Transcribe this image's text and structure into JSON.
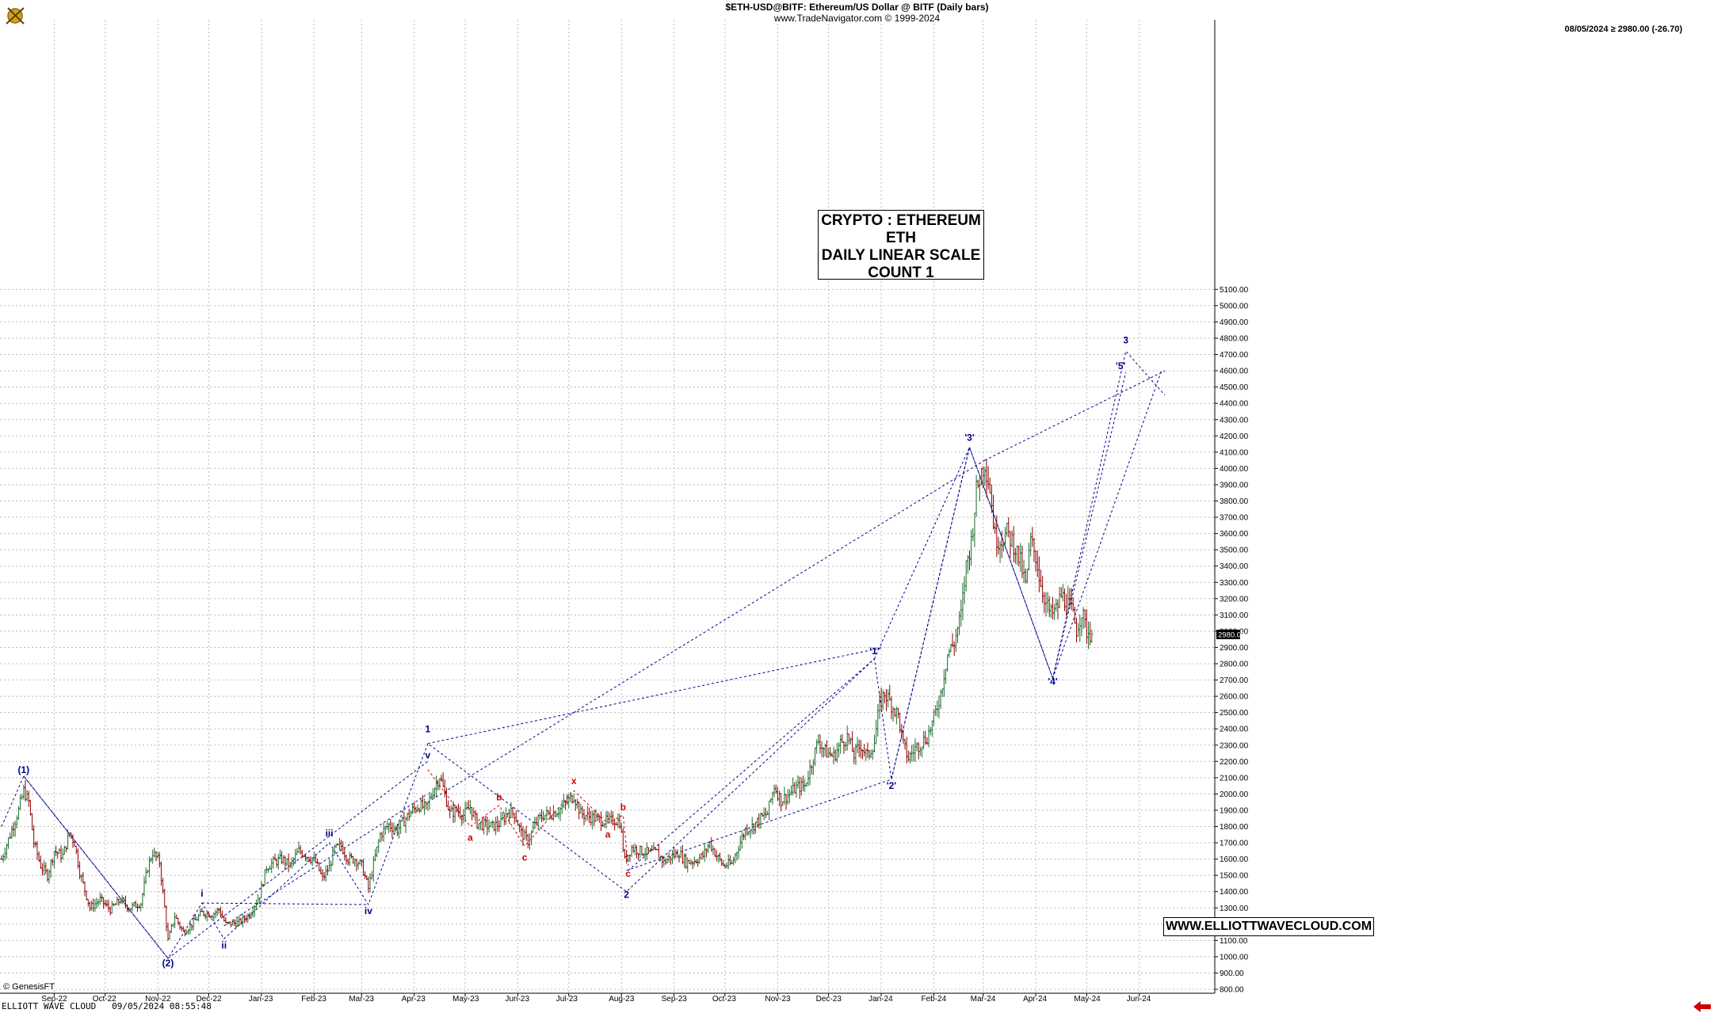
{
  "header": {
    "title": "$ETH-USD@BITF:  Ethereum/US Dollar @ BITF  (Daily bars)",
    "subtitle": "www.TradeNavigator.com © 1999-2024",
    "last_price_text": "08/05/2024 ≥ 2980.00 (-26.70)"
  },
  "info_box": {
    "line1": "CRYPTO : ETHEREUM",
    "line2": "ETH",
    "line3": "DAILY LINEAR SCALE",
    "line4": "COUNT 1"
  },
  "website": "WWW.ELLIOTTWAVECLOUD.COM",
  "footer": {
    "left": "ELLIOTT WAVE CLOUD   09/05/2024 08:55:48",
    "genesis": "© GenesisFT"
  },
  "colors": {
    "up_bar": "#1a6b2a",
    "down_bar": "#8b0000",
    "wave_blue": "#00008b",
    "wave_red": "#cc0000",
    "grid": "#bbbbbb",
    "price_tag_bg": "#000000",
    "nav_arrow": "#cc0000"
  },
  "icons": {
    "logo": "crossed-swords-emblem-icon",
    "nav": "left-arrow-icon"
  },
  "chart_data": {
    "type": "ohlc",
    "title": "$ETH-USD@BITF:  Ethereum/US Dollar @ BITF  (Daily bars)",
    "ylim": [
      800,
      5100
    ],
    "y_ticks": [
      "800.00",
      "900.00",
      "1000.00",
      "1100.00",
      "1200.00",
      "1300.00",
      "1400.00",
      "1500.00",
      "1600.00",
      "1700.00",
      "1800.00",
      "1900.00",
      "2000.00",
      "2100.00",
      "2200.00",
      "2300.00",
      "2400.00",
      "2500.00",
      "2600.00",
      "2700.00",
      "2800.00",
      "2900.00",
      "3000.00",
      "3100.00",
      "3200.00",
      "3300.00",
      "3400.00",
      "3500.00",
      "3600.00",
      "3700.00",
      "3800.00",
      "3900.00",
      "4000.00",
      "4100.00",
      "4200.00",
      "4300.00",
      "4400.00",
      "4500.00",
      "4600.00",
      "4700.00",
      "4800.00",
      "4900.00",
      "5000.00",
      "5100.00"
    ],
    "x_ticks": [
      {
        "label": "Sep-22",
        "day": 31
      },
      {
        "label": "Oct-22",
        "day": 61
      },
      {
        "label": "Nov-22",
        "day": 92
      },
      {
        "label": "Dec-22",
        "day": 122
      },
      {
        "label": "Jan-23",
        "day": 153
      },
      {
        "label": "Feb-23",
        "day": 184
      },
      {
        "label": "Mar-23",
        "day": 212
      },
      {
        "label": "Apr-23",
        "day": 243
      },
      {
        "label": "May-23",
        "day": 273
      },
      {
        "label": "Jun-23",
        "day": 304
      },
      {
        "label": "Jul-23",
        "day": 334
      },
      {
        "label": "Aug-23",
        "day": 365
      },
      {
        "label": "Sep-23",
        "day": 396
      },
      {
        "label": "Oct-23",
        "day": 426
      },
      {
        "label": "Nov-23",
        "day": 457
      },
      {
        "label": "Dec-23",
        "day": 487
      },
      {
        "label": "Jan-24",
        "day": 518
      },
      {
        "label": "Feb-24",
        "day": 549
      },
      {
        "label": "Mar-24",
        "day": 578
      },
      {
        "label": "Apr-24",
        "day": 609
      },
      {
        "label": "May-24",
        "day": 639
      },
      {
        "label": "Jun-24",
        "day": 670
      }
    ],
    "x_range": [
      0,
      703
    ],
    "last_price_tag": "2980.00",
    "price_path": [
      [
        0,
        1600
      ],
      [
        5,
        1750
      ],
      [
        10,
        1900
      ],
      [
        13,
        2020
      ],
      [
        16,
        1950
      ],
      [
        19,
        1700
      ],
      [
        23,
        1560
      ],
      [
        27,
        1500
      ],
      [
        31,
        1650
      ],
      [
        36,
        1620
      ],
      [
        40,
        1760
      ],
      [
        43,
        1700
      ],
      [
        46,
        1520
      ],
      [
        52,
        1300
      ],
      [
        58,
        1350
      ],
      [
        64,
        1290
      ],
      [
        70,
        1350
      ],
      [
        75,
        1300
      ],
      [
        82,
        1330
      ],
      [
        86,
        1550
      ],
      [
        89,
        1640
      ],
      [
        93,
        1580
      ],
      [
        96,
        1300
      ],
      [
        98,
        1100
      ],
      [
        102,
        1250
      ],
      [
        107,
        1150
      ],
      [
        112,
        1200
      ],
      [
        118,
        1270
      ],
      [
        124,
        1260
      ],
      [
        128,
        1290
      ],
      [
        132,
        1200
      ],
      [
        140,
        1210
      ],
      [
        146,
        1260
      ],
      [
        152,
        1380
      ],
      [
        156,
        1550
      ],
      [
        160,
        1580
      ],
      [
        165,
        1600
      ],
      [
        170,
        1560
      ],
      [
        175,
        1650
      ],
      [
        180,
        1620
      ],
      [
        185,
        1580
      ],
      [
        189,
        1480
      ],
      [
        193,
        1550
      ],
      [
        196,
        1660
      ],
      [
        200,
        1680
      ],
      [
        204,
        1600
      ],
      [
        208,
        1600
      ],
      [
        212,
        1560
      ],
      [
        216,
        1420
      ],
      [
        219,
        1570
      ],
      [
        223,
        1750
      ],
      [
        228,
        1810
      ],
      [
        233,
        1780
      ],
      [
        238,
        1850
      ],
      [
        242,
        1900
      ],
      [
        246,
        1930
      ],
      [
        250,
        1910
      ],
      [
        254,
        2020
      ],
      [
        258,
        2110
      ],
      [
        261,
        2000
      ],
      [
        264,
        1880
      ],
      [
        268,
        1900
      ],
      [
        272,
        1870
      ],
      [
        276,
        1920
      ],
      [
        280,
        1820
      ],
      [
        284,
        1810
      ],
      [
        289,
        1800
      ],
      [
        294,
        1820
      ],
      [
        298,
        1890
      ],
      [
        302,
        1880
      ],
      [
        306,
        1760
      ],
      [
        310,
        1710
      ],
      [
        315,
        1830
      ],
      [
        319,
        1870
      ],
      [
        324,
        1880
      ],
      [
        328,
        1900
      ],
      [
        333,
        1950
      ],
      [
        337,
        1990
      ],
      [
        341,
        1880
      ],
      [
        346,
        1860
      ],
      [
        352,
        1840
      ],
      [
        357,
        1830
      ],
      [
        361,
        1840
      ],
      [
        364,
        1830
      ],
      [
        367,
        1590
      ],
      [
        371,
        1670
      ],
      [
        376,
        1650
      ],
      [
        381,
        1640
      ],
      [
        386,
        1640
      ],
      [
        390,
        1580
      ],
      [
        395,
        1620
      ],
      [
        399,
        1640
      ],
      [
        403,
        1580
      ],
      [
        408,
        1590
      ],
      [
        413,
        1620
      ],
      [
        417,
        1700
      ],
      [
        421,
        1620
      ],
      [
        425,
        1560
      ],
      [
        430,
        1570
      ],
      [
        434,
        1680
      ],
      [
        438,
        1780
      ],
      [
        442,
        1800
      ],
      [
        447,
        1850
      ],
      [
        451,
        1880
      ],
      [
        455,
        2050
      ],
      [
        459,
        1960
      ],
      [
        464,
        2000
      ],
      [
        468,
        2040
      ],
      [
        473,
        2050
      ],
      [
        477,
        2190
      ],
      [
        481,
        2330
      ],
      [
        485,
        2260
      ],
      [
        490,
        2230
      ],
      [
        494,
        2310
      ],
      [
        498,
        2350
      ],
      [
        502,
        2240
      ],
      [
        506,
        2300
      ],
      [
        510,
        2230
      ],
      [
        514,
        2320
      ],
      [
        517,
        2550
      ],
      [
        520,
        2620
      ],
      [
        524,
        2550
      ],
      [
        528,
        2480
      ],
      [
        531,
        2300
      ],
      [
        534,
        2220
      ],
      [
        538,
        2280
      ],
      [
        541,
        2310
      ],
      [
        545,
        2350
      ],
      [
        549,
        2460
      ],
      [
        553,
        2620
      ],
      [
        557,
        2860
      ],
      [
        561,
        2930
      ],
      [
        565,
        3100
      ],
      [
        568,
        3400
      ],
      [
        571,
        3550
      ],
      [
        574,
        3860
      ],
      [
        577,
        3980
      ],
      [
        579,
        4040
      ],
      [
        582,
        3880
      ],
      [
        585,
        3580
      ],
      [
        588,
        3560
      ],
      [
        592,
        3600
      ],
      [
        596,
        3540
      ],
      [
        600,
        3420
      ],
      [
        603,
        3280
      ],
      [
        606,
        3550
      ],
      [
        609,
        3460
      ],
      [
        612,
        3290
      ],
      [
        615,
        3170
      ],
      [
        618,
        3100
      ],
      [
        621,
        3130
      ],
      [
        624,
        3220
      ],
      [
        627,
        3180
      ],
      [
        630,
        3130
      ],
      [
        633,
        3010
      ],
      [
        636,
        3120
      ],
      [
        639,
        3000
      ],
      [
        642,
        2980
      ]
    ],
    "waves": [
      {
        "label": "(1)",
        "day": 13,
        "price": 2110,
        "color": "blue",
        "pos": "above"
      },
      {
        "label": "(2)",
        "day": 98,
        "price": 1000,
        "color": "blue",
        "pos": "below"
      },
      {
        "label": "i",
        "day": 118,
        "price": 1350,
        "color": "blue",
        "pos": "above"
      },
      {
        "label": "ii",
        "day": 131,
        "price": 1110,
        "color": "blue",
        "pos": "below"
      },
      {
        "label": "iii",
        "day": 193,
        "price": 1720,
        "color": "blue",
        "pos": "above"
      },
      {
        "label": "iv",
        "day": 216,
        "price": 1320,
        "color": "blue",
        "pos": "below"
      },
      {
        "label": "1",
        "day": 251,
        "price": 2360,
        "color": "blue",
        "pos": "above"
      },
      {
        "label": "v",
        "day": 251,
        "price": 2200,
        "color": "blue",
        "pos": "above"
      },
      {
        "label": "a",
        "day": 276,
        "price": 1770,
        "color": "red",
        "pos": "below"
      },
      {
        "label": "b",
        "day": 293,
        "price": 1940,
        "color": "red",
        "pos": "above"
      },
      {
        "label": "c",
        "day": 308,
        "price": 1650,
        "color": "red",
        "pos": "below"
      },
      {
        "label": "x",
        "day": 337,
        "price": 2040,
        "color": "red",
        "pos": "above"
      },
      {
        "label": "a",
        "day": 357,
        "price": 1790,
        "color": "red",
        "pos": "below"
      },
      {
        "label": "b",
        "day": 366,
        "price": 1880,
        "color": "red",
        "pos": "above"
      },
      {
        "label": "c",
        "day": 369,
        "price": 1550,
        "color": "red",
        "pos": "below"
      },
      {
        "label": "2",
        "day": 368,
        "price": 1420,
        "color": "blue",
        "pos": "below"
      },
      {
        "label": "'1'",
        "day": 514,
        "price": 2840,
        "color": "blue",
        "pos": "above"
      },
      {
        "label": "'2'",
        "day": 524,
        "price": 2090,
        "color": "blue",
        "pos": "below"
      },
      {
        "label": "'3'",
        "day": 570,
        "price": 4150,
        "color": "blue",
        "pos": "above"
      },
      {
        "label": "'4'",
        "day": 619,
        "price": 2730,
        "color": "blue",
        "pos": "below"
      },
      {
        "label": "'5'",
        "day": 659,
        "price": 4590,
        "color": "blue",
        "pos": "above"
      },
      {
        "label": "3",
        "day": 662,
        "price": 4750,
        "color": "blue",
        "pos": "above"
      }
    ],
    "wave_lines": [
      [
        [
          0,
          1800
        ],
        [
          13,
          2110
        ],
        [
          98,
          990
        ],
        [
          118,
          1330
        ],
        [
          131,
          1110
        ],
        [
          193,
          1700
        ],
        [
          216,
          1320
        ],
        [
          251,
          2310
        ],
        [
          368,
          1400
        ],
        [
          514,
          2830
        ],
        [
          524,
          2090
        ],
        [
          570,
          4130
        ],
        [
          619,
          2710
        ],
        [
          662,
          4720
        ],
        [
          685,
          4450
        ]
      ],
      [
        [
          98,
          990
        ],
        [
          251,
          2200
        ]
      ],
      [
        [
          118,
          1330
        ],
        [
          216,
          1320
        ]
      ],
      [
        [
          251,
          2310
        ],
        [
          519,
          2900
        ]
      ],
      [
        [
          13,
          2110
        ],
        [
          98,
          990
        ]
      ],
      [
        [
          368,
          1530
        ],
        [
          524,
          2090
        ]
      ],
      [
        [
          369,
          1530
        ],
        [
          514,
          2830
        ]
      ],
      [
        [
          514,
          2830
        ],
        [
          570,
          4130
        ]
      ],
      [
        [
          524,
          2090
        ],
        [
          570,
          4130
        ]
      ],
      [
        [
          570,
          4130
        ],
        [
          619,
          2710
        ]
      ],
      [
        [
          619,
          2710
        ],
        [
          662,
          4590
        ]
      ],
      [
        [
          251,
          1950
        ],
        [
          579,
          4050
        ]
      ],
      [
        [
          579,
          4050
        ],
        [
          685,
          4600
        ]
      ],
      [
        [
          619,
          2710
        ],
        [
          683,
          4600
        ]
      ],
      [
        [
          131,
          1190
        ],
        [
          251,
          2000
        ]
      ]
    ],
    "red_wave_lines": [
      [
        [
          251,
          2150
        ],
        [
          276,
          1800
        ],
        [
          293,
          1930
        ],
        [
          308,
          1680
        ],
        [
          337,
          2020
        ],
        [
          357,
          1820
        ],
        [
          366,
          1870
        ],
        [
          369,
          1560
        ]
      ]
    ]
  }
}
